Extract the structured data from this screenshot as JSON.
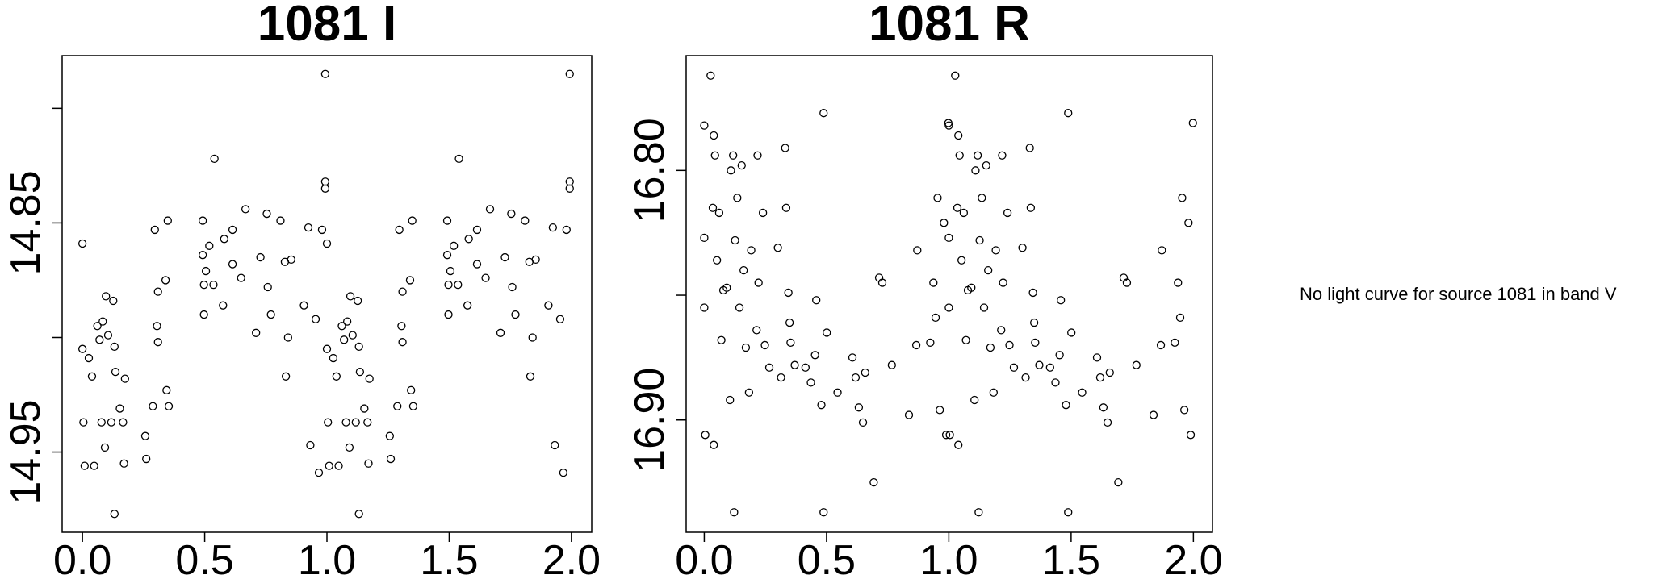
{
  "message": "No light curve for source 1081 in band V",
  "chart_data": [
    {
      "type": "scatter",
      "title": "1081 I",
      "color": "#000000",
      "y_reversed": true,
      "xlim": [
        -0.083,
        2.083
      ],
      "ylim": [
        14.777,
        14.985
      ],
      "xticks": [
        {
          "value": 0,
          "label": "0.0"
        },
        {
          "value": 0.5,
          "label": "0.5"
        },
        {
          "value": 1,
          "label": "1.0"
        },
        {
          "value": 1.5,
          "label": "1.5"
        },
        {
          "value": 2,
          "label": "2.0"
        }
      ],
      "yticks": [
        {
          "value": 14.8,
          "label": null
        },
        14.85,
        {
          "value": 14.9,
          "label": null
        },
        14.95
      ],
      "x": [
        0,
        0,
        0.004,
        0.009,
        0.026,
        0.039,
        0.048,
        0.061,
        0.07,
        0.078,
        0.083,
        0.092,
        0.096,
        0.105,
        0.118,
        0.126,
        0.131,
        0.131,
        0.135,
        0.153,
        0.166,
        0.17,
        0.174,
        0.257,
        0.261,
        0.288,
        0.296,
        0.305,
        0.309,
        0.309,
        0.34,
        0.344,
        0.349,
        0.353,
        0.492,
        0.492,
        0.497,
        0.497,
        0.505,
        0.519,
        0.536,
        0.54,
        0.575,
        0.58,
        0.614,
        0.614,
        0.649,
        0.667,
        0.71,
        0.728,
        0.754,
        0.758,
        0.771,
        0.81,
        0.828,
        0.832,
        0.841,
        0.854,
        0.906,
        0.924,
        0.932,
        0.954,
        0.967,
        0.98,
        0.993,
        0.993,
        0.993,
        1,
        1,
        1.004,
        1.009,
        1.026,
        1.039,
        1.048,
        1.061,
        1.07,
        1.078,
        1.083,
        1.092,
        1.096,
        1.105,
        1.118,
        1.126,
        1.131,
        1.131,
        1.135,
        1.153,
        1.166,
        1.17,
        1.174,
        1.257,
        1.261,
        1.288,
        1.296,
        1.305,
        1.309,
        1.309,
        1.34,
        1.344,
        1.349,
        1.353,
        1.492,
        1.492,
        1.497,
        1.497,
        1.505,
        1.519,
        1.536,
        1.54,
        1.575,
        1.58,
        1.614,
        1.614,
        1.649,
        1.667,
        1.71,
        1.728,
        1.754,
        1.758,
        1.771,
        1.81,
        1.828,
        1.832,
        1.841,
        1.854,
        1.906,
        1.924,
        1.932,
        1.954,
        1.967,
        1.98,
        1.993,
        1.993,
        1.993
      ],
      "y": [
        14.859,
        14.905,
        14.937,
        14.956,
        14.909,
        14.917,
        14.956,
        14.895,
        14.901,
        14.937,
        14.893,
        14.948,
        14.882,
        14.899,
        14.937,
        14.884,
        14.904,
        14.977,
        14.915,
        14.931,
        14.937,
        14.955,
        14.918,
        14.943,
        14.953,
        14.93,
        14.853,
        14.895,
        14.88,
        14.902,
        14.875,
        14.923,
        14.849,
        14.93,
        14.849,
        14.864,
        14.877,
        14.89,
        14.871,
        14.86,
        14.877,
        14.822,
        14.886,
        14.857,
        14.853,
        14.868,
        14.874,
        14.844,
        14.898,
        14.865,
        14.846,
        14.878,
        14.89,
        14.849,
        14.867,
        14.917,
        14.9,
        14.866,
        14.886,
        14.852,
        14.947,
        14.892,
        14.959,
        14.853,
        14.785,
        14.832,
        14.835,
        14.859,
        14.905,
        14.937,
        14.956,
        14.909,
        14.917,
        14.956,
        14.895,
        14.901,
        14.937,
        14.893,
        14.948,
        14.882,
        14.899,
        14.937,
        14.884,
        14.904,
        14.977,
        14.915,
        14.931,
        14.937,
        14.955,
        14.918,
        14.943,
        14.953,
        14.93,
        14.853,
        14.895,
        14.88,
        14.902,
        14.875,
        14.923,
        14.849,
        14.93,
        14.849,
        14.864,
        14.877,
        14.89,
        14.871,
        14.86,
        14.877,
        14.822,
        14.886,
        14.857,
        14.853,
        14.868,
        14.874,
        14.844,
        14.898,
        14.865,
        14.846,
        14.878,
        14.89,
        14.849,
        14.867,
        14.917,
        14.9,
        14.866,
        14.886,
        14.852,
        14.947,
        14.892,
        14.959,
        14.853,
        14.785,
        14.832,
        14.835
      ]
    },
    {
      "type": "scatter",
      "title": "1081 R",
      "color": "#000000",
      "y_reversed": true,
      "xlim": [
        -0.074,
        2.078
      ],
      "ylim": [
        16.754,
        16.945
      ],
      "xticks": [
        {
          "value": 0,
          "label": "0.0"
        },
        {
          "value": 0.5,
          "label": "0.5"
        },
        {
          "value": 1,
          "label": "1.0"
        },
        {
          "value": 1.5,
          "label": "1.5"
        },
        {
          "value": 2,
          "label": "2.0"
        }
      ],
      "yticks": [
        {
          "value": 16.8,
          "label": "16.80"
        },
        {
          "value": 16.85,
          "label": null
        },
        {
          "value": 16.9,
          "label": "16.90"
        }
      ],
      "x": [
        0,
        0,
        0,
        0.004,
        0.026,
        0.035,
        0.039,
        0.039,
        0.044,
        0.052,
        0.061,
        0.07,
        0.078,
        0.092,
        0.105,
        0.109,
        0.118,
        0.122,
        0.126,
        0.135,
        0.144,
        0.153,
        0.161,
        0.17,
        0.183,
        0.192,
        0.214,
        0.218,
        0.222,
        0.24,
        0.248,
        0.266,
        0.301,
        0.314,
        0.331,
        0.335,
        0.344,
        0.349,
        0.353,
        0.37,
        0.414,
        0.436,
        0.453,
        0.458,
        0.479,
        0.488,
        0.488,
        0.501,
        0.545,
        0.606,
        0.619,
        0.632,
        0.649,
        0.658,
        0.693,
        0.715,
        0.728,
        0.767,
        0.837,
        0.867,
        0.871,
        0.924,
        0.937,
        0.946,
        0.954,
        0.963,
        0.98,
        0.989,
        0.998,
        1,
        1,
        1,
        1.004,
        1.026,
        1.035,
        1.039,
        1.039,
        1.044,
        1.052,
        1.061,
        1.07,
        1.078,
        1.092,
        1.105,
        1.109,
        1.118,
        1.122,
        1.126,
        1.135,
        1.144,
        1.153,
        1.161,
        1.17,
        1.183,
        1.192,
        1.214,
        1.218,
        1.222,
        1.24,
        1.248,
        1.266,
        1.301,
        1.314,
        1.331,
        1.335,
        1.344,
        1.349,
        1.353,
        1.37,
        1.414,
        1.436,
        1.453,
        1.458,
        1.479,
        1.488,
        1.488,
        1.501,
        1.545,
        1.606,
        1.619,
        1.632,
        1.649,
        1.658,
        1.693,
        1.715,
        1.728,
        1.767,
        1.837,
        1.867,
        1.871,
        1.924,
        1.937,
        1.946,
        1.954,
        1.963,
        1.98,
        1.989,
        1.998
      ],
      "y": [
        16.782,
        16.827,
        16.855,
        16.906,
        16.762,
        16.815,
        16.786,
        16.91,
        16.794,
        16.836,
        16.817,
        16.868,
        16.848,
        16.847,
        16.892,
        16.8,
        16.794,
        16.937,
        16.828,
        16.811,
        16.855,
        16.798,
        16.84,
        16.871,
        16.889,
        16.832,
        16.864,
        16.794,
        16.845,
        16.817,
        16.87,
        16.879,
        16.831,
        16.883,
        16.791,
        16.815,
        16.849,
        16.861,
        16.869,
        16.878,
        16.879,
        16.885,
        16.874,
        16.852,
        16.894,
        16.777,
        16.937,
        16.865,
        16.889,
        16.875,
        16.883,
        16.895,
        16.901,
        16.881,
        16.925,
        16.843,
        16.845,
        16.878,
        16.898,
        16.87,
        16.832,
        16.869,
        16.845,
        16.859,
        16.811,
        16.896,
        16.821,
        16.906,
        16.781,
        16.782,
        16.827,
        16.855,
        16.906,
        16.762,
        16.815,
        16.786,
        16.91,
        16.794,
        16.836,
        16.817,
        16.868,
        16.848,
        16.847,
        16.892,
        16.8,
        16.794,
        16.937,
        16.828,
        16.811,
        16.855,
        16.798,
        16.84,
        16.871,
        16.889,
        16.832,
        16.864,
        16.794,
        16.845,
        16.817,
        16.87,
        16.879,
        16.831,
        16.883,
        16.791,
        16.815,
        16.849,
        16.861,
        16.869,
        16.878,
        16.879,
        16.885,
        16.874,
        16.852,
        16.894,
        16.777,
        16.937,
        16.865,
        16.889,
        16.875,
        16.883,
        16.895,
        16.901,
        16.881,
        16.925,
        16.843,
        16.845,
        16.878,
        16.898,
        16.87,
        16.832,
        16.869,
        16.845,
        16.859,
        16.811,
        16.896,
        16.821,
        16.906,
        16.781
      ]
    }
  ]
}
